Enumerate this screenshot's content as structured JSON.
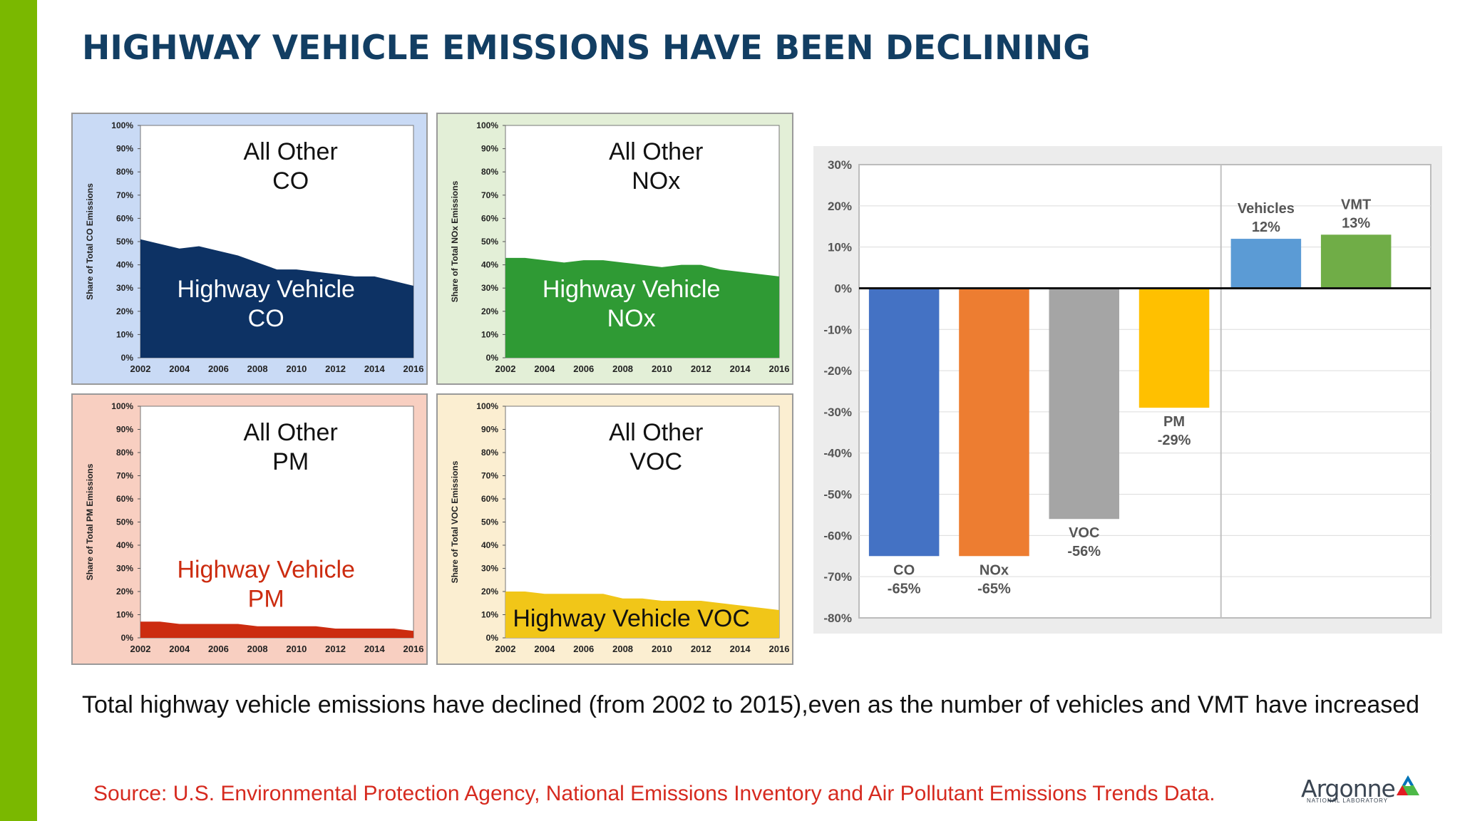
{
  "title": "HIGHWAY VEHICLE EMISSIONS HAVE BEEN DECLINING",
  "caption": "Total highway vehicle emissions have declined (from 2002 to 2015),even as the number of vehicles and VMT have increased",
  "source": "Source: U.S. Environmental Protection Agency, National Emissions Inventory and Air Pollutant Emissions Trends Data.",
  "logo": {
    "word": "Argonne",
    "sub": "NATIONAL LABORATORY"
  },
  "colors": {
    "accent_bar": "#7ab800",
    "title": "#123e63",
    "source": "#d62a1f"
  },
  "chart_data": [
    {
      "type": "area",
      "panel_bg": "#c9daf5",
      "fill": "#0d3264",
      "ylabel": "Share of Total CO Emissions",
      "x": [
        2002,
        2003,
        2004,
        2005,
        2006,
        2007,
        2008,
        2009,
        2010,
        2011,
        2012,
        2013,
        2014,
        2015,
        2016
      ],
      "xticks": [
        "2002",
        "2004",
        "2006",
        "2008",
        "2010",
        "2012",
        "2014",
        "2016"
      ],
      "yticks": [
        "0%",
        "10%",
        "20%",
        "30%",
        "40%",
        "50%",
        "60%",
        "70%",
        "80%",
        "90%",
        "100%"
      ],
      "values": [
        51,
        49,
        47,
        48,
        46,
        44,
        41,
        38,
        38,
        37,
        36,
        35,
        35,
        33,
        31
      ],
      "top_label": [
        "All Other",
        "CO"
      ],
      "bottom_label": [
        "Highway Vehicle",
        "CO"
      ],
      "bottom_label_color": "#ffffff",
      "ylim": [
        0,
        100
      ]
    },
    {
      "type": "area",
      "panel_bg": "#e3efd7",
      "fill": "#2f9a34",
      "ylabel": "Share of Total NOx Emissions",
      "x": [
        2002,
        2003,
        2004,
        2005,
        2006,
        2007,
        2008,
        2009,
        2010,
        2011,
        2012,
        2013,
        2014,
        2015,
        2016
      ],
      "xticks": [
        "2002",
        "2004",
        "2006",
        "2008",
        "2010",
        "2012",
        "2014",
        "2016"
      ],
      "yticks": [
        "0%",
        "10%",
        "20%",
        "30%",
        "40%",
        "50%",
        "60%",
        "70%",
        "80%",
        "90%",
        "100%"
      ],
      "values": [
        43,
        43,
        42,
        41,
        42,
        42,
        41,
        40,
        39,
        40,
        40,
        38,
        37,
        36,
        35
      ],
      "top_label": [
        "All Other",
        "NOx"
      ],
      "bottom_label": [
        "Highway Vehicle",
        "NOx"
      ],
      "bottom_label_color": "#ffffff",
      "ylim": [
        0,
        100
      ]
    },
    {
      "type": "area",
      "panel_bg": "#f8cfc1",
      "fill": "#cc2c10",
      "ylabel": "Share of Total PM Emissions",
      "x": [
        2002,
        2003,
        2004,
        2005,
        2006,
        2007,
        2008,
        2009,
        2010,
        2011,
        2012,
        2013,
        2014,
        2015,
        2016
      ],
      "xticks": [
        "2002",
        "2004",
        "2006",
        "2008",
        "2010",
        "2012",
        "2014",
        "2016"
      ],
      "yticks": [
        "0%",
        "10%",
        "20%",
        "30%",
        "40%",
        "50%",
        "60%",
        "70%",
        "80%",
        "90%",
        "100%"
      ],
      "values": [
        7,
        7,
        6,
        6,
        6,
        6,
        5,
        5,
        5,
        5,
        4,
        4,
        4,
        4,
        3
      ],
      "top_label": [
        "All Other",
        "PM"
      ],
      "bottom_label": [
        "Highway Vehicle",
        "PM"
      ],
      "bottom_label_color": "#cc2c10",
      "ylim": [
        0,
        100
      ]
    },
    {
      "type": "area",
      "panel_bg": "#fbeed1",
      "fill": "#f1c618",
      "ylabel": "Share of Total VOC Emissions",
      "x": [
        2002,
        2003,
        2004,
        2005,
        2006,
        2007,
        2008,
        2009,
        2010,
        2011,
        2012,
        2013,
        2014,
        2015,
        2016
      ],
      "xticks": [
        "2002",
        "2004",
        "2006",
        "2008",
        "2010",
        "2012",
        "2014",
        "2016"
      ],
      "yticks": [
        "0%",
        "10%",
        "20%",
        "30%",
        "40%",
        "50%",
        "60%",
        "70%",
        "80%",
        "90%",
        "100%"
      ],
      "values": [
        20,
        20,
        19,
        19,
        19,
        19,
        17,
        17,
        16,
        16,
        16,
        15,
        14,
        13,
        12
      ],
      "top_label": [
        "All Other",
        "VOC"
      ],
      "bottom_label": [
        "Highway Vehicle VOC"
      ],
      "bottom_label_color": "#111111",
      "ylim": [
        0,
        100
      ]
    },
    {
      "type": "bar",
      "categories": [
        "CO",
        "NOx",
        "VOC",
        "PM",
        "Vehicles",
        "VMT"
      ],
      "values": [
        -65,
        -65,
        -56,
        -29,
        12,
        13
      ],
      "labels": [
        "-65%",
        "-65%",
        "-56%",
        "-29%",
        "12%",
        "13%"
      ],
      "colors": [
        "#4472c4",
        "#ed7d31",
        "#a5a5a5",
        "#ffc000",
        "#5b9bd5",
        "#70ad47"
      ],
      "yticks": [
        "30%",
        "20%",
        "10%",
        "0%",
        "-10%",
        "-20%",
        "-30%",
        "-40%",
        "-50%",
        "-60%",
        "-70%",
        "-80%"
      ],
      "ylim": [
        -80,
        30
      ],
      "grid": true
    }
  ]
}
